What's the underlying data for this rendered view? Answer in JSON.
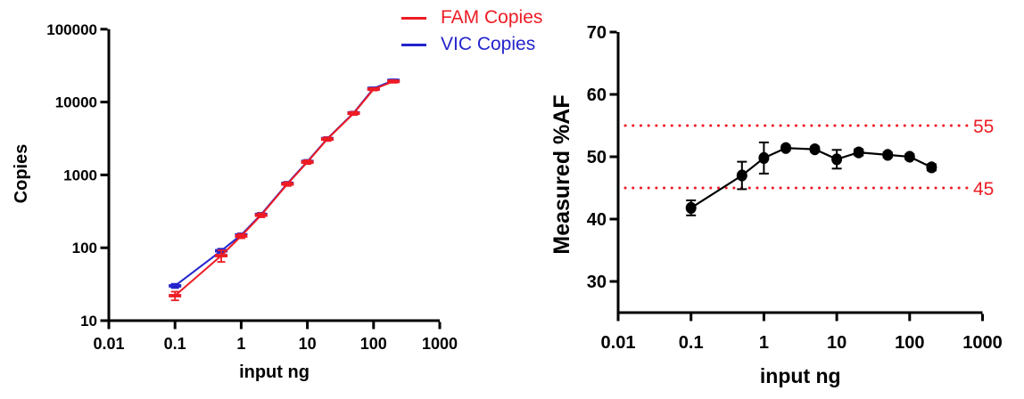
{
  "figure": {
    "background": "#ffffff"
  },
  "chart_data": [
    {
      "type": "line",
      "title": "",
      "xlabel": "input ng",
      "ylabel": "Copies",
      "xscale": "log",
      "yscale": "log",
      "xlim": [
        0.01,
        1000
      ],
      "ylim": [
        10,
        100000
      ],
      "x_ticks": [
        "0.01",
        "0.1",
        "1",
        "10",
        "100",
        "1000"
      ],
      "y_ticks": [
        "10",
        "100",
        "1000",
        "10000",
        "100000"
      ],
      "grid": false,
      "legend_position": "top-right",
      "marker": "dash",
      "x": [
        0.1,
        0.5,
        1,
        2,
        5,
        10,
        20,
        50,
        100,
        200
      ],
      "series": [
        {
          "name": "FAM Copies",
          "color": "#ED1C24",
          "values": [
            22,
            78,
            145,
            280,
            750,
            1500,
            3100,
            7000,
            15000,
            19200
          ],
          "errors": [
            3,
            14,
            10,
            18,
            45,
            90,
            180,
            350,
            600,
            800
          ]
        },
        {
          "name": "VIC Copies",
          "color": "#2424CC",
          "values": [
            30,
            91,
            150,
            287,
            765,
            1530,
            3150,
            7100,
            15400,
            19800
          ],
          "errors": [
            2,
            6,
            8,
            15,
            40,
            80,
            160,
            300,
            550,
            700
          ]
        }
      ]
    },
    {
      "type": "line",
      "title": "",
      "xlabel": "input ng",
      "ylabel": "Measured %AF",
      "xscale": "log",
      "yscale": "linear",
      "xlim": [
        0.01,
        1000
      ],
      "ylim": [
        25,
        70
      ],
      "x_ticks": [
        "0.01",
        "0.1",
        "1",
        "10",
        "100",
        "1000"
      ],
      "y_ticks": [
        "30",
        "40",
        "50",
        "60",
        "70"
      ],
      "grid": false,
      "marker": "circle",
      "x": [
        0.1,
        0.5,
        1,
        2,
        5,
        10,
        20,
        50,
        100,
        200
      ],
      "series": [
        {
          "name": "Measured %AF",
          "color": "#000000",
          "values": [
            41.8,
            47.0,
            49.8,
            51.4,
            51.2,
            49.6,
            50.7,
            50.3,
            50.0,
            48.3
          ],
          "errors": [
            1.2,
            2.2,
            2.5,
            0.4,
            0.4,
            1.5,
            0.5,
            0.4,
            0.4,
            0.5
          ]
        }
      ],
      "reference_lines": [
        {
          "value": 55,
          "label": "55",
          "color": "#ED1C24",
          "style": "dotted"
        },
        {
          "value": 45,
          "label": "45",
          "color": "#ED1C24",
          "style": "dotted"
        }
      ]
    }
  ]
}
